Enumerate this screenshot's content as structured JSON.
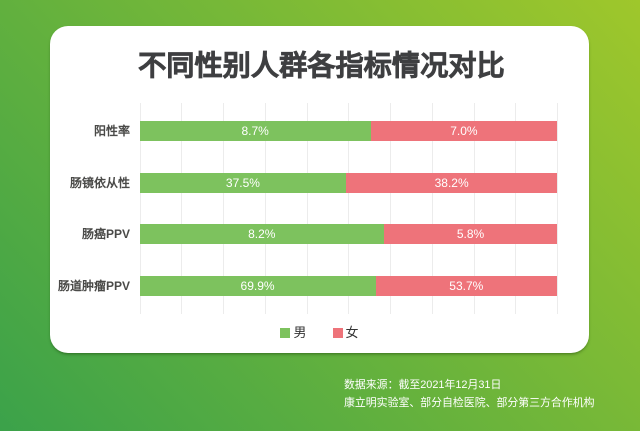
{
  "title": "不同性别人群各指标情况对比",
  "chart_data": {
    "type": "bar",
    "variant": "horizontal-100pct-stacked",
    "title": "不同性别人群各指标情况对比",
    "categories": [
      "阳性率",
      "肠镜依从性",
      "肠癌PPV",
      "肠道肿瘤PPV"
    ],
    "series": [
      {
        "name": "男",
        "color": "#7dc25e",
        "values": [
          8.7,
          37.5,
          8.2,
          69.9
        ]
      },
      {
        "name": "女",
        "color": "#ee737a",
        "values": [
          7.0,
          38.2,
          5.8,
          53.7
        ]
      }
    ],
    "value_labels": [
      [
        "8.7%",
        "7.0%"
      ],
      [
        "37.5%",
        "38.2%"
      ],
      [
        "8.2%",
        "5.8%"
      ],
      [
        "69.9%",
        "53.7%"
      ]
    ],
    "xlim": [
      0,
      100
    ],
    "grid": true,
    "gridline_count": 11,
    "legend_position": "bottom"
  },
  "legend": [
    {
      "label": "男",
      "color": "#7dc25e"
    },
    {
      "label": "女",
      "color": "#ee737a"
    }
  ],
  "source": {
    "line1": "数据来源：截至2021年12月31日",
    "line2": "康立明实验室、部分自检医院、部分第三方合作机构"
  },
  "colors": {
    "background_gradient_start": "#3ba24a",
    "background_gradient_end": "#9fc72b",
    "card": "#ffffff",
    "title_text": "#3e3f41",
    "male_bar": "#7dc25e",
    "female_bar": "#ee737a",
    "gridline": "#ececec",
    "bar_value_text": "#ffffff",
    "source_text": "#ffffff"
  }
}
